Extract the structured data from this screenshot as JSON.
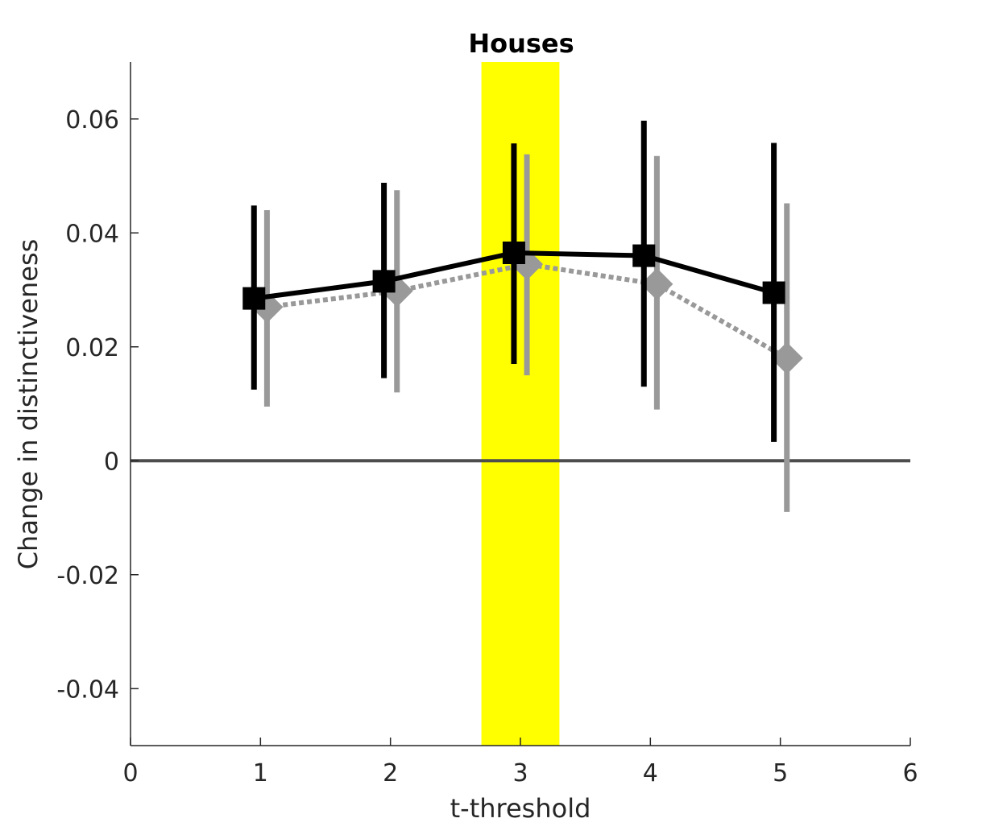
{
  "chart_data": {
    "type": "line",
    "title": "Houses",
    "xlabel": "t-threshold",
    "ylabel": "Change in distinctiveness",
    "xlim": [
      0,
      6
    ],
    "ylim": [
      -0.05,
      0.07
    ],
    "x_ticks": [
      "0",
      "1",
      "2",
      "3",
      "4",
      "5",
      "6"
    ],
    "y_ticks": [
      "-0.04",
      "-0.02",
      "0",
      "0.02",
      "0.04",
      "0.06"
    ],
    "grid": false,
    "highlight_band": {
      "x_range": [
        2.7,
        3.3
      ],
      "color": "#ffff00"
    },
    "reference_line": {
      "y": 0,
      "color": "#4d4d4d"
    },
    "series": [
      {
        "marker": "square",
        "line_style": "solid",
        "color": "#000000",
        "x": [
          0.95,
          1.95,
          2.95,
          3.95,
          4.95
        ],
        "y": [
          0.0285,
          0.0315,
          0.0365,
          0.036,
          0.0295
        ],
        "error_low": [
          0.0125,
          0.0145,
          0.017,
          0.013,
          0.0033
        ],
        "error_high": [
          0.0448,
          0.0488,
          0.0557,
          0.0597,
          0.0558
        ]
      },
      {
        "marker": "diamond",
        "line_style": "dotted",
        "color": "#999999",
        "x": [
          1.05,
          2.05,
          3.05,
          4.05,
          5.05
        ],
        "y": [
          0.027,
          0.0298,
          0.0345,
          0.031,
          0.018
        ],
        "error_low": [
          0.0095,
          0.012,
          0.015,
          0.009,
          -0.009
        ],
        "error_high": [
          0.044,
          0.0475,
          0.0538,
          0.0535,
          0.0452
        ]
      }
    ]
  }
}
